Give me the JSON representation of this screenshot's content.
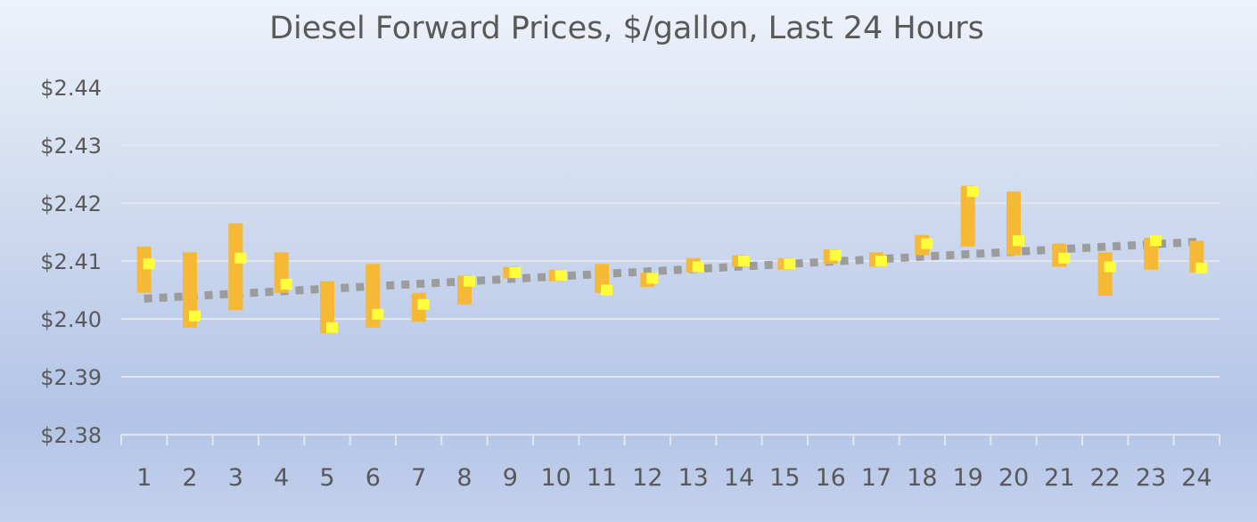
{
  "chart_data": {
    "type": "stock-ohlc",
    "title": "Diesel Forward Prices, $/gallon, Last 24 Hours",
    "xlabel": "",
    "ylabel": "",
    "categories": [
      "1",
      "2",
      "3",
      "4",
      "5",
      "6",
      "7",
      "8",
      "9",
      "10",
      "11",
      "12",
      "13",
      "14",
      "15",
      "16",
      "17",
      "18",
      "19",
      "20",
      "21",
      "22",
      "23",
      "24"
    ],
    "ylim": [
      2.38,
      2.44
    ],
    "yticks": [
      2.38,
      2.39,
      2.4,
      2.41,
      2.42,
      2.43,
      2.44
    ],
    "ytick_labels": [
      "$2.38",
      "$2.39",
      "$2.40",
      "$2.41",
      "$2.42",
      "$2.43",
      "$2.44"
    ],
    "high": [
      2.4125,
      2.4115,
      2.4165,
      2.4115,
      2.4065,
      2.4095,
      2.4045,
      2.4075,
      2.409,
      2.4085,
      2.4095,
      2.408,
      2.4105,
      2.411,
      2.4105,
      2.412,
      2.4115,
      2.4145,
      2.423,
      2.422,
      2.413,
      2.4115,
      2.414,
      2.4135
    ],
    "low": [
      2.4045,
      2.3985,
      2.4015,
      2.4045,
      2.3975,
      2.3985,
      2.3995,
      2.4025,
      2.407,
      2.4065,
      2.4045,
      2.4055,
      2.408,
      2.409,
      2.4085,
      2.4095,
      2.409,
      2.411,
      2.4125,
      2.411,
      2.409,
      2.404,
      2.4085,
      2.408
    ],
    "close": [
      2.4095,
      2.4005,
      2.4105,
      2.406,
      2.3985,
      2.4008,
      2.4025,
      2.4065,
      2.408,
      2.4075,
      2.405,
      2.407,
      2.409,
      2.41,
      2.4095,
      2.411,
      2.41,
      2.413,
      2.422,
      2.4135,
      2.4105,
      2.409,
      2.4135,
      2.4088
    ],
    "trendline": {
      "type": "linear",
      "start": 2.4035,
      "end": 2.4133
    },
    "colors": {
      "range": "#f5b935",
      "close": "#ffff3c",
      "trend": "#9c9c9c",
      "grid": "#e3e6ec",
      "text": "#595959"
    },
    "grid": true,
    "legend": "none"
  }
}
